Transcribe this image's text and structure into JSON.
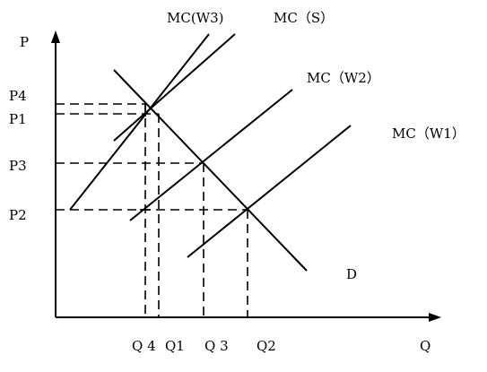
{
  "axes": {
    "y_label": "P",
    "x_label": "Q"
  },
  "price_labels": {
    "p4": "P4",
    "p1": "P1",
    "p3": "P3",
    "p2": "P2"
  },
  "quantity_labels": {
    "q4": "Q 4",
    "q1": "Q1",
    "q3": "Q 3",
    "q2": "Q2"
  },
  "curve_labels": {
    "mc_w3": "MC(W3)",
    "mc_s": "MC（S）",
    "mc_w2": "MC（W2）",
    "mc_w1": "MC（W1）",
    "d": "D"
  }
}
